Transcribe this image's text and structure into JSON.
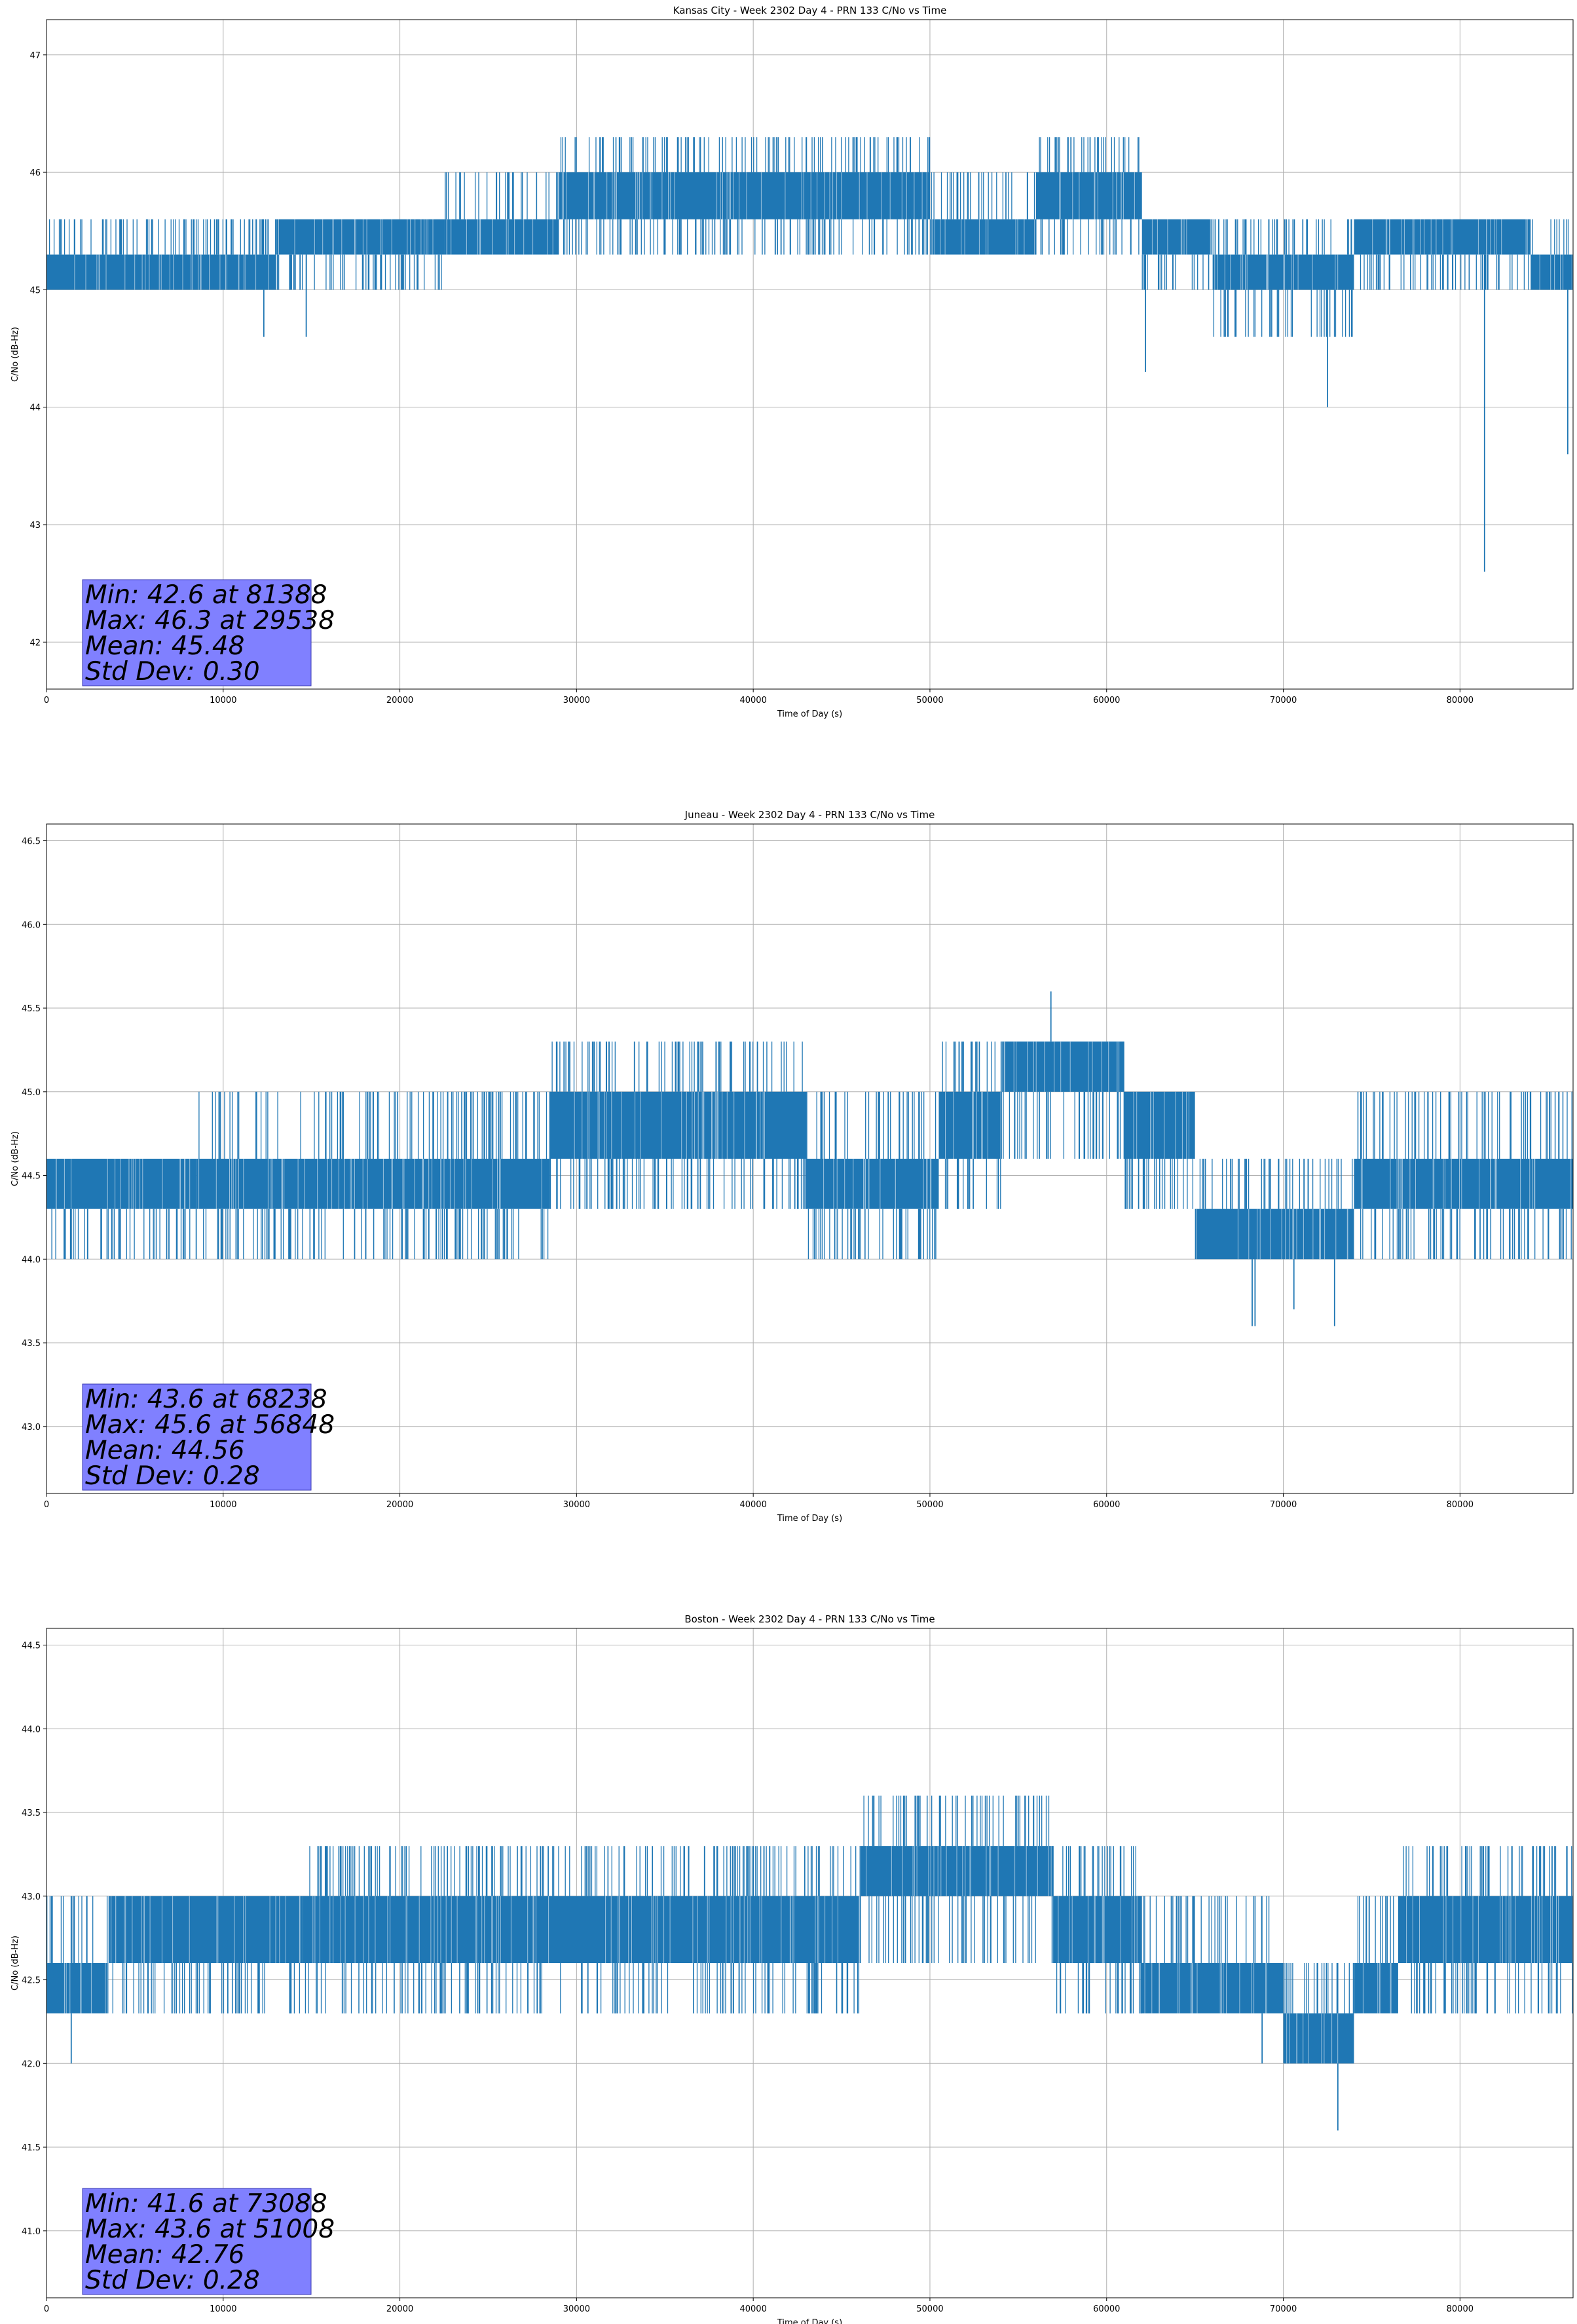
{
  "chart_data": [
    {
      "type": "line",
      "title": "Kansas City - Week 2302 Day 4 - PRN 133 C/No vs Time",
      "xlabel": "Time of Day (s)",
      "ylabel": "C/No (dB-Hz)",
      "xlim": [
        0,
        86400
      ],
      "ylim": [
        41.6,
        47.3
      ],
      "xticks": [
        0,
        10000,
        20000,
        30000,
        40000,
        50000,
        60000,
        70000,
        80000
      ],
      "yticks": [
        42,
        43,
        44,
        45,
        46,
        47
      ],
      "grid": true,
      "line_color": "#1f77b4",
      "stats_box_color": "#8080ff",
      "stats": [
        "Min: 42.6 at 81388",
        "Max: 46.3 at 29538",
        "Mean: 45.48",
        "Std Dev: 0.30"
      ],
      "band_segments": [
        {
          "x0": 0,
          "x1": 13000,
          "lo": 45.0,
          "hi": 45.3,
          "spike_lo": 45.0,
          "spike_hi": 45.6
        },
        {
          "x0": 13000,
          "x1": 22500,
          "lo": 45.3,
          "hi": 45.6,
          "spike_lo": 45.0,
          "spike_hi": 45.6
        },
        {
          "x0": 22500,
          "x1": 29000,
          "lo": 45.3,
          "hi": 45.6,
          "spike_lo": 45.3,
          "spike_hi": 46.0
        },
        {
          "x0": 29000,
          "x1": 50000,
          "lo": 45.6,
          "hi": 46.0,
          "spike_lo": 45.3,
          "spike_hi": 46.3
        },
        {
          "x0": 50000,
          "x1": 56000,
          "lo": 45.3,
          "hi": 45.6,
          "spike_lo": 45.3,
          "spike_hi": 46.0
        },
        {
          "x0": 56000,
          "x1": 62000,
          "lo": 45.6,
          "hi": 46.0,
          "spike_lo": 45.3,
          "spike_hi": 46.3
        },
        {
          "x0": 62000,
          "x1": 66000,
          "lo": 45.3,
          "hi": 45.6,
          "spike_lo": 45.0,
          "spike_hi": 45.6
        },
        {
          "x0": 66000,
          "x1": 74000,
          "lo": 45.0,
          "hi": 45.3,
          "spike_lo": 44.6,
          "spike_hi": 45.6
        },
        {
          "x0": 74000,
          "x1": 84000,
          "lo": 45.3,
          "hi": 45.6,
          "spike_lo": 45.0,
          "spike_hi": 45.6
        },
        {
          "x0": 84000,
          "x1": 86400,
          "lo": 45.0,
          "hi": 45.3,
          "spike_lo": 45.0,
          "spike_hi": 45.6
        }
      ],
      "extreme_spikes": [
        {
          "x": 12300,
          "y": 44.6
        },
        {
          "x": 14700,
          "y": 44.6
        },
        {
          "x": 62200,
          "y": 44.3
        },
        {
          "x": 72500,
          "y": 44.0
        },
        {
          "x": 81388,
          "y": 42.6
        },
        {
          "x": 86100,
          "y": 43.6
        }
      ]
    },
    {
      "type": "line",
      "title": "Juneau - Week 2302 Day 4 - PRN 133 C/No vs Time",
      "xlabel": "Time of Day (s)",
      "ylabel": "C/No (dB-Hz)",
      "xlim": [
        0,
        86400
      ],
      "ylim": [
        42.6,
        46.6
      ],
      "xticks": [
        0,
        10000,
        20000,
        30000,
        40000,
        50000,
        60000,
        70000,
        80000
      ],
      "yticks": [
        43.0,
        43.5,
        44.0,
        44.5,
        45.0,
        45.5,
        46.0,
        46.5
      ],
      "grid": true,
      "line_color": "#1f77b4",
      "stats_box_color": "#8080ff",
      "stats": [
        "Min: 43.6 at 68238",
        "Max: 45.6 at 56848",
        "Mean: 44.56",
        "Std Dev: 0.28"
      ],
      "band_segments": [
        {
          "x0": 0,
          "x1": 8500,
          "lo": 44.3,
          "hi": 44.6,
          "spike_lo": 44.0,
          "spike_hi": 44.6
        },
        {
          "x0": 8500,
          "x1": 28500,
          "lo": 44.3,
          "hi": 44.6,
          "spike_lo": 44.0,
          "spike_hi": 45.0
        },
        {
          "x0": 28500,
          "x1": 43000,
          "lo": 44.6,
          "hi": 45.0,
          "spike_lo": 44.3,
          "spike_hi": 45.3
        },
        {
          "x0": 43000,
          "x1": 50500,
          "lo": 44.3,
          "hi": 44.6,
          "spike_lo": 44.0,
          "spike_hi": 45.0
        },
        {
          "x0": 50500,
          "x1": 54000,
          "lo": 44.6,
          "hi": 45.0,
          "spike_lo": 44.3,
          "spike_hi": 45.3
        },
        {
          "x0": 54000,
          "x1": 61000,
          "lo": 45.0,
          "hi": 45.3,
          "spike_lo": 44.6,
          "spike_hi": 45.3
        },
        {
          "x0": 61000,
          "x1": 65000,
          "lo": 44.6,
          "hi": 45.0,
          "spike_lo": 44.3,
          "spike_hi": 45.0
        },
        {
          "x0": 65000,
          "x1": 74000,
          "lo": 44.0,
          "hi": 44.3,
          "spike_lo": 44.0,
          "spike_hi": 44.6
        },
        {
          "x0": 74000,
          "x1": 86400,
          "lo": 44.3,
          "hi": 44.6,
          "spike_lo": 44.0,
          "spike_hi": 45.0
        }
      ],
      "extreme_spikes": [
        {
          "x": 56848,
          "y": 45.6
        },
        {
          "x": 68238,
          "y": 43.6
        },
        {
          "x": 68400,
          "y": 43.6
        },
        {
          "x": 70600,
          "y": 43.7
        },
        {
          "x": 72900,
          "y": 43.6
        }
      ]
    },
    {
      "type": "line",
      "title": "Boston - Week 2302 Day 4 - PRN 133 C/No vs Time",
      "xlabel": "Time of Day (s)",
      "ylabel": "C/No (dB-Hz)",
      "xlim": [
        0,
        86400
      ],
      "ylim": [
        40.6,
        44.6
      ],
      "xticks": [
        0,
        10000,
        20000,
        30000,
        40000,
        50000,
        60000,
        70000,
        80000
      ],
      "yticks": [
        41.0,
        41.5,
        42.0,
        42.5,
        43.0,
        43.5,
        44.0,
        44.5
      ],
      "grid": true,
      "line_color": "#1f77b4",
      "stats_box_color": "#8080ff",
      "stats": [
        "Min: 41.6 at 73088",
        "Max: 43.6 at 51008",
        "Mean: 42.76",
        "Std Dev: 0.28"
      ],
      "band_segments": [
        {
          "x0": 0,
          "x1": 3500,
          "lo": 42.3,
          "hi": 42.6,
          "spike_lo": 42.3,
          "spike_hi": 43.0
        },
        {
          "x0": 3500,
          "x1": 14500,
          "lo": 42.6,
          "hi": 43.0,
          "spike_lo": 42.3,
          "spike_hi": 43.0
        },
        {
          "x0": 14500,
          "x1": 46000,
          "lo": 42.6,
          "hi": 43.0,
          "spike_lo": 42.3,
          "spike_hi": 43.3
        },
        {
          "x0": 46000,
          "x1": 57000,
          "lo": 43.0,
          "hi": 43.3,
          "spike_lo": 42.6,
          "spike_hi": 43.6
        },
        {
          "x0": 57000,
          "x1": 62000,
          "lo": 42.6,
          "hi": 43.0,
          "spike_lo": 42.3,
          "spike_hi": 43.3
        },
        {
          "x0": 62000,
          "x1": 70000,
          "lo": 42.3,
          "hi": 42.6,
          "spike_lo": 42.3,
          "spike_hi": 43.0
        },
        {
          "x0": 70000,
          "x1": 74000,
          "lo": 42.0,
          "hi": 42.3,
          "spike_lo": 42.0,
          "spike_hi": 42.6
        },
        {
          "x0": 74000,
          "x1": 76500,
          "lo": 42.3,
          "hi": 42.6,
          "spike_lo": 42.3,
          "spike_hi": 43.0
        },
        {
          "x0": 76500,
          "x1": 86400,
          "lo": 42.6,
          "hi": 43.0,
          "spike_lo": 42.3,
          "spike_hi": 43.3
        }
      ],
      "extreme_spikes": [
        {
          "x": 1400,
          "y": 42.0
        },
        {
          "x": 68800,
          "y": 42.0
        },
        {
          "x": 73088,
          "y": 41.6
        }
      ]
    }
  ]
}
